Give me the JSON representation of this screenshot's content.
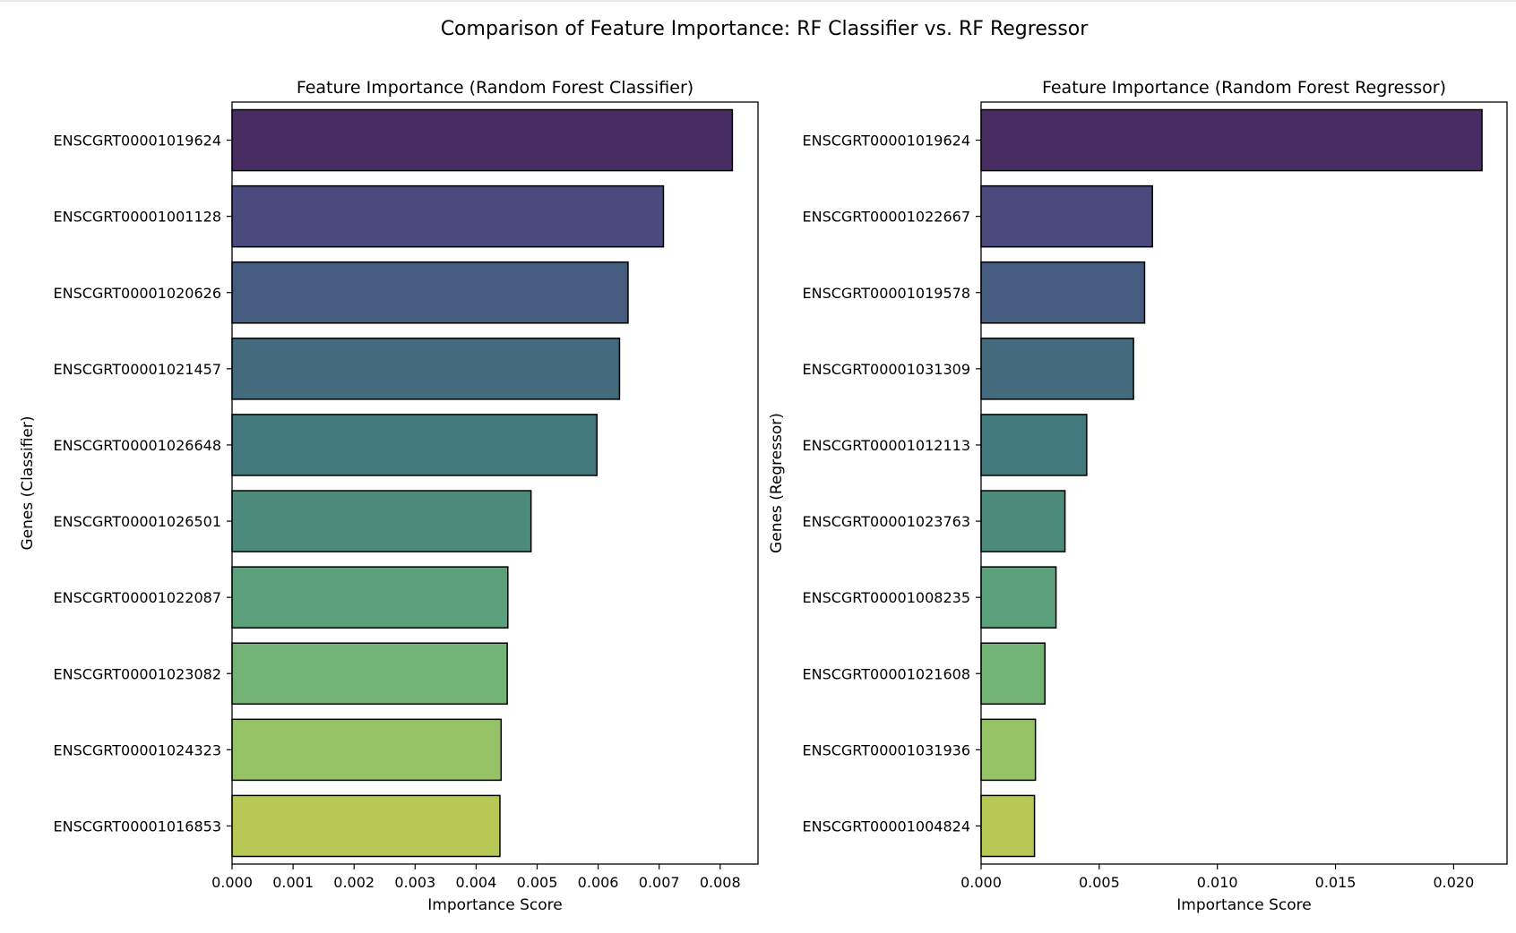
{
  "figure_title": "Comparison of Feature Importance: RF Classifier vs. RF Regressor",
  "palette": [
    "#472d62",
    "#4a4a7c",
    "#465b80",
    "#436a7d",
    "#43797c",
    "#4d8c7c",
    "#5aa07b",
    "#73b476",
    "#96c266",
    "#b7c954"
  ],
  "chart_data": [
    {
      "type": "bar",
      "orientation": "horizontal",
      "title": "Feature Importance (Random Forest Classifier)",
      "xlabel": "Importance Score",
      "ylabel": "Genes (Classifier)",
      "xlim": [
        0,
        0.00862
      ],
      "xticks": [
        "0.000",
        "0.001",
        "0.002",
        "0.003",
        "0.004",
        "0.005",
        "0.006",
        "0.007",
        "0.008"
      ],
      "categories": [
        "ENSCGRT00001019624",
        "ENSCGRT00001001128",
        "ENSCGRT00001020626",
        "ENSCGRT00001021457",
        "ENSCGRT00001026648",
        "ENSCGRT00001026501",
        "ENSCGRT00001022087",
        "ENSCGRT00001023082",
        "ENSCGRT00001024323",
        "ENSCGRT00001016853"
      ],
      "values": [
        0.0082,
        0.00707,
        0.00649,
        0.00635,
        0.00598,
        0.0049,
        0.00452,
        0.00451,
        0.00441,
        0.00439
      ],
      "grid": false
    },
    {
      "type": "bar",
      "orientation": "horizontal",
      "title": "Feature Importance (Random Forest Regressor)",
      "xlabel": "Importance Score",
      "ylabel": "Genes (Regressor)",
      "xlim": [
        0,
        0.02226
      ],
      "xticks": [
        "0.000",
        "0.005",
        "0.010",
        "0.015",
        "0.020"
      ],
      "categories": [
        "ENSCGRT00001019624",
        "ENSCGRT00001022667",
        "ENSCGRT00001019578",
        "ENSCGRT00001031309",
        "ENSCGRT00001012113",
        "ENSCGRT00001023763",
        "ENSCGRT00001008235",
        "ENSCGRT00001021608",
        "ENSCGRT00001031936",
        "ENSCGRT00001004824"
      ],
      "values": [
        0.0212,
        0.00725,
        0.00692,
        0.00645,
        0.00447,
        0.00355,
        0.00317,
        0.0027,
        0.0023,
        0.00226
      ],
      "grid": false
    }
  ]
}
